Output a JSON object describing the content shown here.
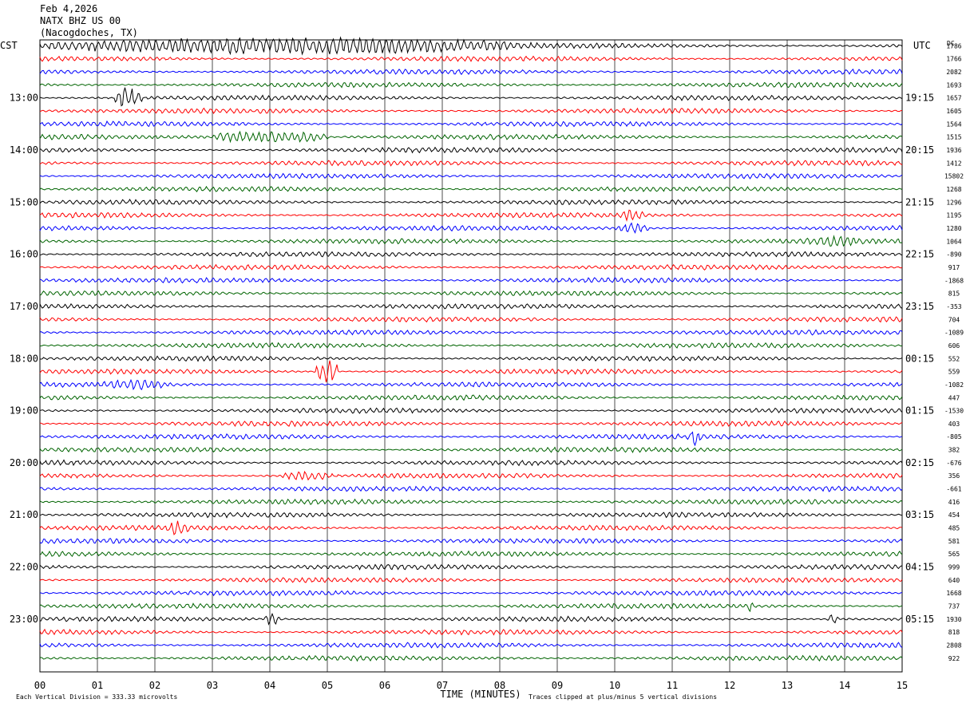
{
  "header": {
    "date": "Feb 4,2026",
    "station": "NATX BHZ US 00",
    "location": "(Nacogdoches, TX)"
  },
  "chart_data": {
    "type": "line",
    "title": "Feb 4,2026 NATX BHZ US 00 (Nacogdoches, TX)",
    "left_timezone": "CST",
    "right_timezone": "UTC",
    "dc_label": "DC",
    "xlabel": "TIME (MINUTES)",
    "x_ticks": [
      "00",
      "01",
      "02",
      "03",
      "04",
      "05",
      "06",
      "07",
      "08",
      "09",
      "10",
      "11",
      "12",
      "13",
      "14",
      "15"
    ],
    "xlim": [
      0,
      15
    ],
    "left_hour_labels": [
      "13:00",
      "14:00",
      "15:00",
      "16:00",
      "17:00",
      "18:00",
      "19:00",
      "20:00",
      "21:00",
      "22:00",
      "23:00"
    ],
    "right_hour_labels": [
      "19:15",
      "20:15",
      "21:15",
      "22:15",
      "23:15",
      "00:15",
      "01:15",
      "02:15",
      "03:15",
      "04:15",
      "05:15"
    ],
    "trace_colors": [
      "#000000",
      "#ff0000",
      "#0000ff",
      "#006400"
    ],
    "dc_offsets": [
      "1786",
      "1766",
      "2082",
      "1693",
      "1657",
      "1605",
      "1564",
      "1515",
      "1936",
      "1412",
      "15802",
      "1268",
      "1296",
      "1195",
      "1280",
      "1064",
      "-890",
      "917",
      "-1868",
      "815",
      "-353",
      "704",
      "-1089",
      "606",
      "552",
      "559",
      "-1082",
      "447",
      "-1530",
      "403",
      "-805",
      "382",
      "-676",
      "356",
      "-661",
      "416",
      "454",
      "485",
      "581",
      "565",
      "999",
      "640",
      "1668",
      "737",
      "1930",
      "818",
      "2808",
      "922"
    ],
    "footer_left": "Each Vertical Division =  333.33 microvolts",
    "footer_right": "Traces clipped at plus/minus 5 vertical divisions",
    "events": [
      {
        "trace": 0,
        "start_min": 0.0,
        "end_min": 8.7,
        "amp": 3.2
      },
      {
        "trace": 4,
        "start_min": 1.3,
        "end_min": 1.8,
        "amp": 4.0
      },
      {
        "trace": 7,
        "start_min": 3.0,
        "end_min": 5.0,
        "amp": 2.5
      },
      {
        "trace": 13,
        "start_min": 10.1,
        "end_min": 10.5,
        "amp": 2.5
      },
      {
        "trace": 14,
        "start_min": 10.0,
        "end_min": 10.6,
        "amp": 2.0
      },
      {
        "trace": 15,
        "start_min": 13.2,
        "end_min": 14.4,
        "amp": 2.0
      },
      {
        "trace": 25,
        "start_min": 4.8,
        "end_min": 5.2,
        "amp": 4.5
      },
      {
        "trace": 26,
        "start_min": 1.0,
        "end_min": 2.3,
        "amp": 2.0
      },
      {
        "trace": 30,
        "start_min": 11.3,
        "end_min": 11.5,
        "amp": 3.5
      },
      {
        "trace": 33,
        "start_min": 4.2,
        "end_min": 5.1,
        "amp": 1.8
      },
      {
        "trace": 37,
        "start_min": 2.2,
        "end_min": 2.6,
        "amp": 3.0
      },
      {
        "trace": 43,
        "start_min": 12.3,
        "end_min": 12.4,
        "amp": 3.0
      },
      {
        "trace": 44,
        "start_min": 3.9,
        "end_min": 4.2,
        "amp": 2.5
      },
      {
        "trace": 44,
        "start_min": 13.7,
        "end_min": 13.9,
        "amp": 2.0
      }
    ]
  }
}
